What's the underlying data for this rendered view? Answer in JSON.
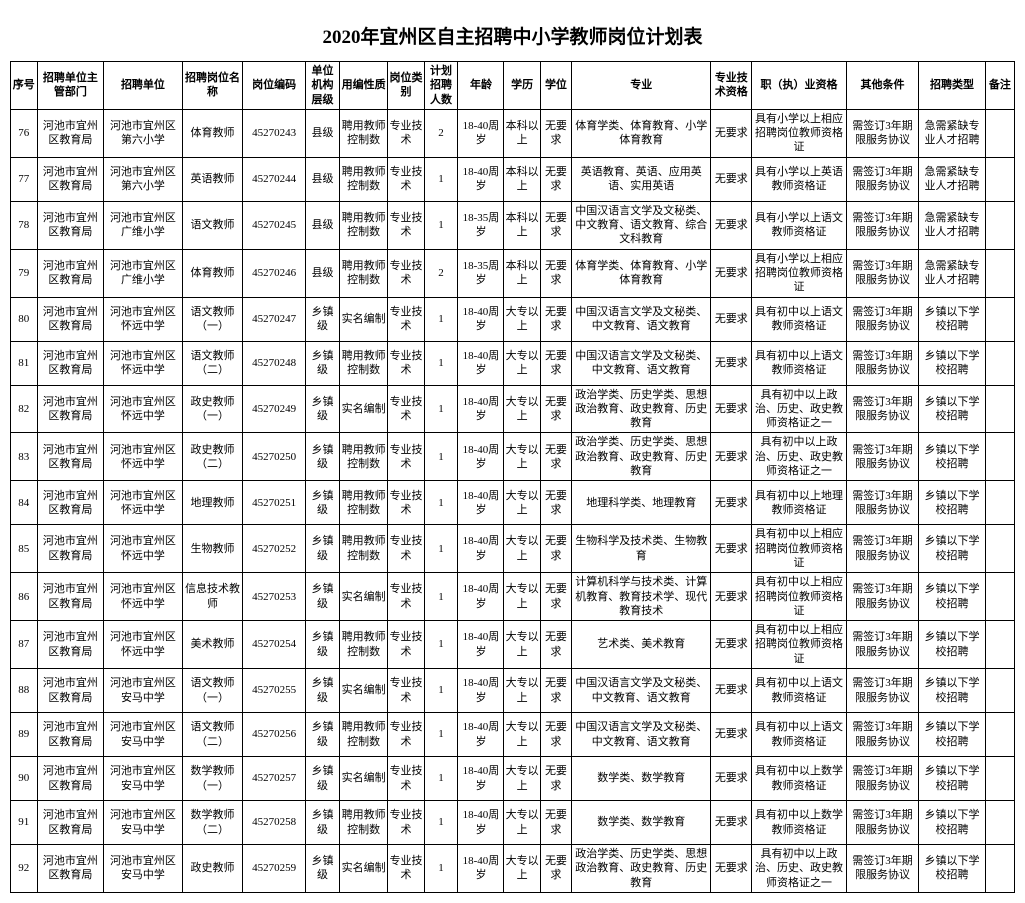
{
  "title": "2020年宜州区自主招聘中小学教师岗位计划表",
  "headers": [
    "序号",
    "招聘单位主管部门",
    "招聘单位",
    "招聘岗位名称",
    "岗位编码",
    "单位机构层级",
    "用编性质",
    "岗位类别",
    "计划招聘人数",
    "年龄",
    "学历",
    "学位",
    "专业",
    "专业技术资格",
    "职（执）业资格",
    "其他条件",
    "招聘类型",
    "备注"
  ],
  "rows": [
    {
      "seq": "76",
      "dept": "河池市宜州区教育局",
      "unit": "河池市宜州区第六小学",
      "postname": "体育教师",
      "code": "45270243",
      "level": "县级",
      "nature": "聘用教师控制数",
      "cat": "专业技术",
      "count": "2",
      "age": "18-40周岁",
      "edu": "本科以上",
      "degree": "无要求",
      "major": "体育学类、体育教育、小学体育教育",
      "tech": "无要求",
      "qual": "具有小学以上相应招聘岗位教师资格证",
      "other": "需签订3年期限服务协议",
      "type": "急需紧缺专业人才招聘",
      "note": ""
    },
    {
      "seq": "77",
      "dept": "河池市宜州区教育局",
      "unit": "河池市宜州区第六小学",
      "postname": "英语教师",
      "code": "45270244",
      "level": "县级",
      "nature": "聘用教师控制数",
      "cat": "专业技术",
      "count": "1",
      "age": "18-40周岁",
      "edu": "本科以上",
      "degree": "无要求",
      "major": "英语教育、英语、应用英语、实用英语",
      "tech": "无要求",
      "qual": "具有小学以上英语教师资格证",
      "other": "需签订3年期限服务协议",
      "type": "急需紧缺专业人才招聘",
      "note": ""
    },
    {
      "seq": "78",
      "dept": "河池市宜州区教育局",
      "unit": "河池市宜州区广维小学",
      "postname": "语文教师",
      "code": "45270245",
      "level": "县级",
      "nature": "聘用教师控制数",
      "cat": "专业技术",
      "count": "1",
      "age": "18-35周岁",
      "edu": "本科以上",
      "degree": "无要求",
      "major": "中国汉语言文学及文秘类、中文教育、语文教育、综合文科教育",
      "tech": "无要求",
      "qual": "具有小学以上语文教师资格证",
      "other": "需签订3年期限服务协议",
      "type": "急需紧缺专业人才招聘",
      "note": ""
    },
    {
      "seq": "79",
      "dept": "河池市宜州区教育局",
      "unit": "河池市宜州区广维小学",
      "postname": "体育教师",
      "code": "45270246",
      "level": "县级",
      "nature": "聘用教师控制数",
      "cat": "专业技术",
      "count": "2",
      "age": "18-35周岁",
      "edu": "本科以上",
      "degree": "无要求",
      "major": "体育学类、体育教育、小学体育教育",
      "tech": "无要求",
      "qual": "具有小学以上相应招聘岗位教师资格证",
      "other": "需签订3年期限服务协议",
      "type": "急需紧缺专业人才招聘",
      "note": ""
    },
    {
      "seq": "80",
      "dept": "河池市宜州区教育局",
      "unit": "河池市宜州区怀远中学",
      "postname": "语文教师（一）",
      "code": "45270247",
      "level": "乡镇级",
      "nature": "实名编制",
      "cat": "专业技术",
      "count": "1",
      "age": "18-40周岁",
      "edu": "大专以上",
      "degree": "无要求",
      "major": "中国汉语言文学及文秘类、中文教育、语文教育",
      "tech": "无要求",
      "qual": "具有初中以上语文教师资格证",
      "other": "需签订3年期限服务协议",
      "type": "乡镇以下学校招聘",
      "note": ""
    },
    {
      "seq": "81",
      "dept": "河池市宜州区教育局",
      "unit": "河池市宜州区怀远中学",
      "postname": "语文教师（二）",
      "code": "45270248",
      "level": "乡镇级",
      "nature": "聘用教师控制数",
      "cat": "专业技术",
      "count": "1",
      "age": "18-40周岁",
      "edu": "大专以上",
      "degree": "无要求",
      "major": "中国汉语言文学及文秘类、中文教育、语文教育",
      "tech": "无要求",
      "qual": "具有初中以上语文教师资格证",
      "other": "需签订3年期限服务协议",
      "type": "乡镇以下学校招聘",
      "note": ""
    },
    {
      "seq": "82",
      "dept": "河池市宜州区教育局",
      "unit": "河池市宜州区怀远中学",
      "postname": "政史教师（一）",
      "code": "45270249",
      "level": "乡镇级",
      "nature": "实名编制",
      "cat": "专业技术",
      "count": "1",
      "age": "18-40周岁",
      "edu": "大专以上",
      "degree": "无要求",
      "major": "政治学类、历史学类、思想政治教育、政史教育、历史教育",
      "tech": "无要求",
      "qual": "具有初中以上政治、历史、政史教师资格证之一",
      "other": "需签订3年期限服务协议",
      "type": "乡镇以下学校招聘",
      "note": ""
    },
    {
      "seq": "83",
      "dept": "河池市宜州区教育局",
      "unit": "河池市宜州区怀远中学",
      "postname": "政史教师（二）",
      "code": "45270250",
      "level": "乡镇级",
      "nature": "聘用教师控制数",
      "cat": "专业技术",
      "count": "1",
      "age": "18-40周岁",
      "edu": "大专以上",
      "degree": "无要求",
      "major": "政治学类、历史学类、思想政治教育、政史教育、历史教育",
      "tech": "无要求",
      "qual": "具有初中以上政治、历史、政史教师资格证之一",
      "other": "需签订3年期限服务协议",
      "type": "乡镇以下学校招聘",
      "note": ""
    },
    {
      "seq": "84",
      "dept": "河池市宜州区教育局",
      "unit": "河池市宜州区怀远中学",
      "postname": "地理教师",
      "code": "45270251",
      "level": "乡镇级",
      "nature": "聘用教师控制数",
      "cat": "专业技术",
      "count": "1",
      "age": "18-40周岁",
      "edu": "大专以上",
      "degree": "无要求",
      "major": "地理科学类、地理教育",
      "tech": "无要求",
      "qual": "具有初中以上地理教师资格证",
      "other": "需签订3年期限服务协议",
      "type": "乡镇以下学校招聘",
      "note": ""
    },
    {
      "seq": "85",
      "dept": "河池市宜州区教育局",
      "unit": "河池市宜州区怀远中学",
      "postname": "生物教师",
      "code": "45270252",
      "level": "乡镇级",
      "nature": "聘用教师控制数",
      "cat": "专业技术",
      "count": "1",
      "age": "18-40周岁",
      "edu": "大专以上",
      "degree": "无要求",
      "major": "生物科学及技术类、生物教育",
      "tech": "无要求",
      "qual": "具有初中以上相应招聘岗位教师资格证",
      "other": "需签订3年期限服务协议",
      "type": "乡镇以下学校招聘",
      "note": ""
    },
    {
      "seq": "86",
      "dept": "河池市宜州区教育局",
      "unit": "河池市宜州区怀远中学",
      "postname": "信息技术教师",
      "code": "45270253",
      "level": "乡镇级",
      "nature": "实名编制",
      "cat": "专业技术",
      "count": "1",
      "age": "18-40周岁",
      "edu": "大专以上",
      "degree": "无要求",
      "major": "计算机科学与技术类、计算机教育、教育技术学、现代教育技术",
      "tech": "无要求",
      "qual": "具有初中以上相应招聘岗位教师资格证",
      "other": "需签订3年期限服务协议",
      "type": "乡镇以下学校招聘",
      "note": ""
    },
    {
      "seq": "87",
      "dept": "河池市宜州区教育局",
      "unit": "河池市宜州区怀远中学",
      "postname": "美术教师",
      "code": "45270254",
      "level": "乡镇级",
      "nature": "聘用教师控制数",
      "cat": "专业技术",
      "count": "1",
      "age": "18-40周岁",
      "edu": "大专以上",
      "degree": "无要求",
      "major": "艺术类、美术教育",
      "tech": "无要求",
      "qual": "具有初中以上相应招聘岗位教师资格证",
      "other": "需签订3年期限服务协议",
      "type": "乡镇以下学校招聘",
      "note": ""
    },
    {
      "seq": "88",
      "dept": "河池市宜州区教育局",
      "unit": "河池市宜州区安马中学",
      "postname": "语文教师（一）",
      "code": "45270255",
      "level": "乡镇级",
      "nature": "实名编制",
      "cat": "专业技术",
      "count": "1",
      "age": "18-40周岁",
      "edu": "大专以上",
      "degree": "无要求",
      "major": "中国汉语言文学及文秘类、中文教育、语文教育",
      "tech": "无要求",
      "qual": "具有初中以上语文教师资格证",
      "other": "需签订3年期限服务协议",
      "type": "乡镇以下学校招聘",
      "note": ""
    },
    {
      "seq": "89",
      "dept": "河池市宜州区教育局",
      "unit": "河池市宜州区安马中学",
      "postname": "语文教师（二）",
      "code": "45270256",
      "level": "乡镇级",
      "nature": "聘用教师控制数",
      "cat": "专业技术",
      "count": "1",
      "age": "18-40周岁",
      "edu": "大专以上",
      "degree": "无要求",
      "major": "中国汉语言文学及文秘类、中文教育、语文教育",
      "tech": "无要求",
      "qual": "具有初中以上语文教师资格证",
      "other": "需签订3年期限服务协议",
      "type": "乡镇以下学校招聘",
      "note": ""
    },
    {
      "seq": "90",
      "dept": "河池市宜州区教育局",
      "unit": "河池市宜州区安马中学",
      "postname": "数学教师（一）",
      "code": "45270257",
      "level": "乡镇级",
      "nature": "实名编制",
      "cat": "专业技术",
      "count": "1",
      "age": "18-40周岁",
      "edu": "大专以上",
      "degree": "无要求",
      "major": "数学类、数学教育",
      "tech": "无要求",
      "qual": "具有初中以上数学教师资格证",
      "other": "需签订3年期限服务协议",
      "type": "乡镇以下学校招聘",
      "note": ""
    },
    {
      "seq": "91",
      "dept": "河池市宜州区教育局",
      "unit": "河池市宜州区安马中学",
      "postname": "数学教师（二）",
      "code": "45270258",
      "level": "乡镇级",
      "nature": "聘用教师控制数",
      "cat": "专业技术",
      "count": "1",
      "age": "18-40周岁",
      "edu": "大专以上",
      "degree": "无要求",
      "major": "数学类、数学教育",
      "tech": "无要求",
      "qual": "具有初中以上数学教师资格证",
      "other": "需签订3年期限服务协议",
      "type": "乡镇以下学校招聘",
      "note": ""
    },
    {
      "seq": "92",
      "dept": "河池市宜州区教育局",
      "unit": "河池市宜州区安马中学",
      "postname": "政史教师",
      "code": "45270259",
      "level": "乡镇级",
      "nature": "实名编制",
      "cat": "专业技术",
      "count": "1",
      "age": "18-40周岁",
      "edu": "大专以上",
      "degree": "无要求",
      "major": "政治学类、历史学类、思想政治教育、政史教育、历史教育",
      "tech": "无要求",
      "qual": "具有初中以上政治、历史、政史教师资格证之一",
      "other": "需签订3年期限服务协议",
      "type": "乡镇以下学校招聘",
      "note": ""
    }
  ]
}
